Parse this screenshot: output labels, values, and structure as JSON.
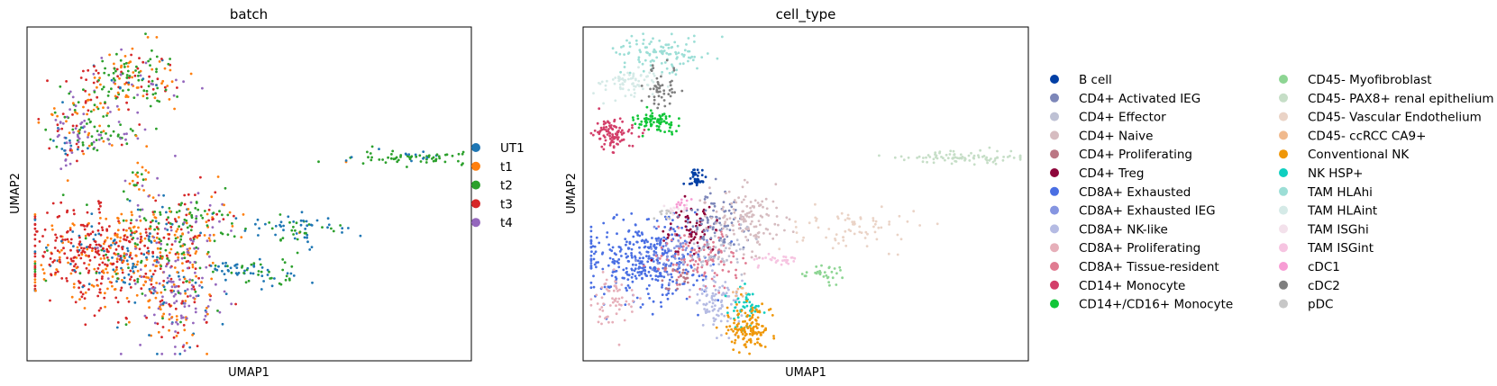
{
  "chart_data": [
    {
      "type": "scatter",
      "title": "batch",
      "xlabel": "UMAP1",
      "ylabel": "UMAP2",
      "grid": false,
      "axis_ticks": false,
      "legend_placement": "right",
      "legend_columns": 1,
      "series": [
        {
          "name": "UT1",
          "color": "#1f77b4"
        },
        {
          "name": "t1",
          "color": "#ff7f0e"
        },
        {
          "name": "t2",
          "color": "#2ca02c"
        },
        {
          "name": "t3",
          "color": "#d62728"
        },
        {
          "name": "t4",
          "color": "#9467bd"
        }
      ],
      "clusters": [
        {
          "center": [
            0.24,
            0.86
          ],
          "spread": [
            0.055,
            0.05
          ],
          "n": 160,
          "mix": {
            "t2": 0.45,
            "t1": 0.25,
            "t3": 0.15,
            "t4": 0.1,
            "UT1": 0.05
          }
        },
        {
          "center": [
            0.13,
            0.76
          ],
          "spread": [
            0.045,
            0.05
          ],
          "n": 80,
          "mix": {
            "t2": 0.4,
            "t1": 0.3,
            "t3": 0.2,
            "t4": 0.1
          }
        },
        {
          "center": [
            0.19,
            0.68
          ],
          "spread": [
            0.05,
            0.02
          ],
          "n": 50,
          "mix": {
            "t2": 0.5,
            "t1": 0.2,
            "t4": 0.3
          }
        },
        {
          "center": [
            0.09,
            0.67
          ],
          "spread": [
            0.025,
            0.04
          ],
          "n": 60,
          "mix": {
            "t4": 0.4,
            "t3": 0.2,
            "t1": 0.2,
            "UT1": 0.2
          }
        },
        {
          "center": [
            0.86,
            0.61
          ],
          "spread": [
            0.08,
            0.01
          ],
          "n": 70,
          "mix": {
            "t2": 0.75,
            "UT1": 0.2,
            "t1": 0.05
          }
        },
        {
          "center": [
            0.25,
            0.55
          ],
          "spread": [
            0.012,
            0.015
          ],
          "n": 15,
          "mix": {
            "t1": 0.6,
            "t2": 0.4
          }
        },
        {
          "center": [
            0.14,
            0.31
          ],
          "spread": [
            0.085,
            0.08
          ],
          "n": 420,
          "mix": {
            "t3": 0.6,
            "t1": 0.25,
            "UT1": 0.1,
            "t2": 0.05
          }
        },
        {
          "center": [
            0.28,
            0.36
          ],
          "spread": [
            0.06,
            0.08
          ],
          "n": 240,
          "mix": {
            "t1": 0.3,
            "t2": 0.25,
            "t3": 0.15,
            "UT1": 0.15,
            "t4": 0.15
          }
        },
        {
          "center": [
            0.34,
            0.17
          ],
          "spread": [
            0.045,
            0.09
          ],
          "n": 200,
          "mix": {
            "t4": 0.45,
            "t1": 0.25,
            "t3": 0.15,
            "UT1": 0.1,
            "t2": 0.05
          }
        },
        {
          "center": [
            0.38,
            0.42
          ],
          "spread": [
            0.045,
            0.04
          ],
          "n": 90,
          "mix": {
            "t2": 0.3,
            "t3": 0.3,
            "t1": 0.2,
            "t4": 0.2
          }
        },
        {
          "center": [
            0.46,
            0.27
          ],
          "spread": [
            0.035,
            0.012
          ],
          "n": 40,
          "mix": {
            "UT1": 0.8,
            "t2": 0.2
          }
        },
        {
          "center": [
            0.6,
            0.39
          ],
          "spread": [
            0.07,
            0.03
          ],
          "n": 70,
          "mix": {
            "UT1": 0.6,
            "t2": 0.35,
            "t1": 0.05
          }
        },
        {
          "center": [
            0.56,
            0.25
          ],
          "spread": [
            0.035,
            0.02
          ],
          "n": 30,
          "mix": {
            "UT1": 0.5,
            "t2": 0.5
          }
        }
      ]
    },
    {
      "type": "scatter",
      "title": "cell_type",
      "xlabel": "UMAP1",
      "ylabel": "UMAP2",
      "grid": false,
      "axis_ticks": false,
      "legend_placement": "right",
      "legend_columns": 2,
      "series": [
        {
          "name": "B cell",
          "color": "#023fa5"
        },
        {
          "name": "CD4+ Activated IEG",
          "color": "#7d87b9"
        },
        {
          "name": "CD4+ Effector",
          "color": "#bec1d4"
        },
        {
          "name": "CD4+ Naive",
          "color": "#d6bcc0"
        },
        {
          "name": "CD4+ Proliferating",
          "color": "#bb7784"
        },
        {
          "name": "CD4+ Treg",
          "color": "#8e063b"
        },
        {
          "name": "CD8A+ Exhausted",
          "color": "#4a6fe3"
        },
        {
          "name": "CD8A+ Exhausted IEG",
          "color": "#8595e1"
        },
        {
          "name": "CD8A+ NK-like",
          "color": "#b5bbe3"
        },
        {
          "name": "CD8A+ Proliferating",
          "color": "#e6afb9"
        },
        {
          "name": "CD8A+ Tissue-resident",
          "color": "#e07b91"
        },
        {
          "name": "CD14+ Monocyte",
          "color": "#d33f6a"
        },
        {
          "name": "CD14+/CD16+ Monocyte",
          "color": "#11c638"
        },
        {
          "name": "CD45- Myofibroblast",
          "color": "#8dd593"
        },
        {
          "name": "CD45- PAX8+ renal epithelium",
          "color": "#c6dec7"
        },
        {
          "name": "CD45- Vascular Endothelium",
          "color": "#ead3c6"
        },
        {
          "name": "CD45- ccRCC CA9+",
          "color": "#f0b98d"
        },
        {
          "name": "Conventional NK",
          "color": "#ef9708"
        },
        {
          "name": "NK HSP+",
          "color": "#0fcfc0"
        },
        {
          "name": "TAM HLAhi",
          "color": "#9cded6"
        },
        {
          "name": "TAM HLAint",
          "color": "#d5eae7"
        },
        {
          "name": "TAM ISGhi",
          "color": "#f3e1eb"
        },
        {
          "name": "TAM ISGint",
          "color": "#f6c4e1"
        },
        {
          "name": "cDC1",
          "color": "#f79cd4"
        },
        {
          "name": "cDC2",
          "color": "#7f7f7f"
        },
        {
          "name": "pDC",
          "color": "#c7c7c7"
        }
      ],
      "clusters": [
        {
          "label": "TAM HLAhi",
          "center": [
            0.17,
            0.93
          ],
          "spread": [
            0.05,
            0.03
          ],
          "n": 110
        },
        {
          "label": "TAM HLAint",
          "center": [
            0.09,
            0.84
          ],
          "spread": [
            0.04,
            0.02
          ],
          "n": 70
        },
        {
          "label": "cDC2",
          "center": [
            0.17,
            0.83
          ],
          "spread": [
            0.025,
            0.03
          ],
          "n": 50
        },
        {
          "label": "CD14+/CD16+ Monocyte",
          "center": [
            0.16,
            0.72
          ],
          "spread": [
            0.025,
            0.02
          ],
          "n": 80
        },
        {
          "label": "CD14+ Monocyte",
          "center": [
            0.06,
            0.68
          ],
          "spread": [
            0.022,
            0.025
          ],
          "n": 100
        },
        {
          "label": "B cell",
          "center": [
            0.25,
            0.55
          ],
          "spread": [
            0.01,
            0.012
          ],
          "n": 40
        },
        {
          "label": "CD45- PAX8+ renal epithelium",
          "center": [
            0.86,
            0.61
          ],
          "spread": [
            0.08,
            0.01
          ],
          "n": 90
        },
        {
          "label": "CD45- Vascular Endothelium",
          "center": [
            0.6,
            0.39
          ],
          "spread": [
            0.07,
            0.03
          ],
          "n": 70
        },
        {
          "label": "CD45- Myofibroblast",
          "center": [
            0.54,
            0.26
          ],
          "spread": [
            0.035,
            0.015
          ],
          "n": 30
        },
        {
          "label": "TAM ISGint",
          "center": [
            0.44,
            0.3
          ],
          "spread": [
            0.035,
            0.01
          ],
          "n": 30
        },
        {
          "label": "CD8A+ Exhausted",
          "center": [
            0.13,
            0.3
          ],
          "spread": [
            0.07,
            0.06
          ],
          "n": 380
        },
        {
          "label": "CD8A+ Proliferating",
          "center": [
            0.06,
            0.17
          ],
          "spread": [
            0.03,
            0.04
          ],
          "n": 60
        },
        {
          "label": "CD8A+ Tissue-resident",
          "center": [
            0.25,
            0.3
          ],
          "spread": [
            0.05,
            0.05
          ],
          "n": 120
        },
        {
          "label": "CD4+ Treg",
          "center": [
            0.24,
            0.4
          ],
          "spread": [
            0.03,
            0.04
          ],
          "n": 70
        },
        {
          "label": "CD4+ Activated IEG",
          "center": [
            0.3,
            0.4
          ],
          "spread": [
            0.03,
            0.05
          ],
          "n": 90
        },
        {
          "label": "CD4+ Naive",
          "center": [
            0.37,
            0.42
          ],
          "spread": [
            0.04,
            0.05
          ],
          "n": 130
        },
        {
          "label": "CD4+ Effector",
          "center": [
            0.3,
            0.32
          ],
          "spread": [
            0.04,
            0.04
          ],
          "n": 50
        },
        {
          "label": "CD8A+ NK-like",
          "center": [
            0.3,
            0.17
          ],
          "spread": [
            0.03,
            0.05
          ],
          "n": 90
        },
        {
          "label": "NK HSP+",
          "center": [
            0.36,
            0.15
          ],
          "spread": [
            0.02,
            0.03
          ],
          "n": 50
        },
        {
          "label": "Conventional NK",
          "center": [
            0.37,
            0.09
          ],
          "spread": [
            0.025,
            0.035
          ],
          "n": 130
        },
        {
          "label": "cDC1",
          "center": [
            0.22,
            0.47
          ],
          "spread": [
            0.01,
            0.01
          ],
          "n": 12
        },
        {
          "label": "TAM ISGhi",
          "center": [
            0.2,
            0.45
          ],
          "spread": [
            0.015,
            0.01
          ],
          "n": 15
        },
        {
          "label": "CD4+ Proliferating",
          "center": [
            0.2,
            0.25
          ],
          "spread": [
            0.02,
            0.02
          ],
          "n": 20
        },
        {
          "label": "CD8A+ Exhausted IEG",
          "center": [
            0.2,
            0.32
          ],
          "spread": [
            0.03,
            0.03
          ],
          "n": 40
        },
        {
          "label": "pDC",
          "center": [
            0.18,
            0.44
          ],
          "spread": [
            0.01,
            0.01
          ],
          "n": 10
        },
        {
          "label": "CD45- ccRCC CA9+",
          "center": [
            0.35,
            0.2
          ],
          "spread": [
            0.01,
            0.01
          ],
          "n": 8
        }
      ]
    }
  ]
}
